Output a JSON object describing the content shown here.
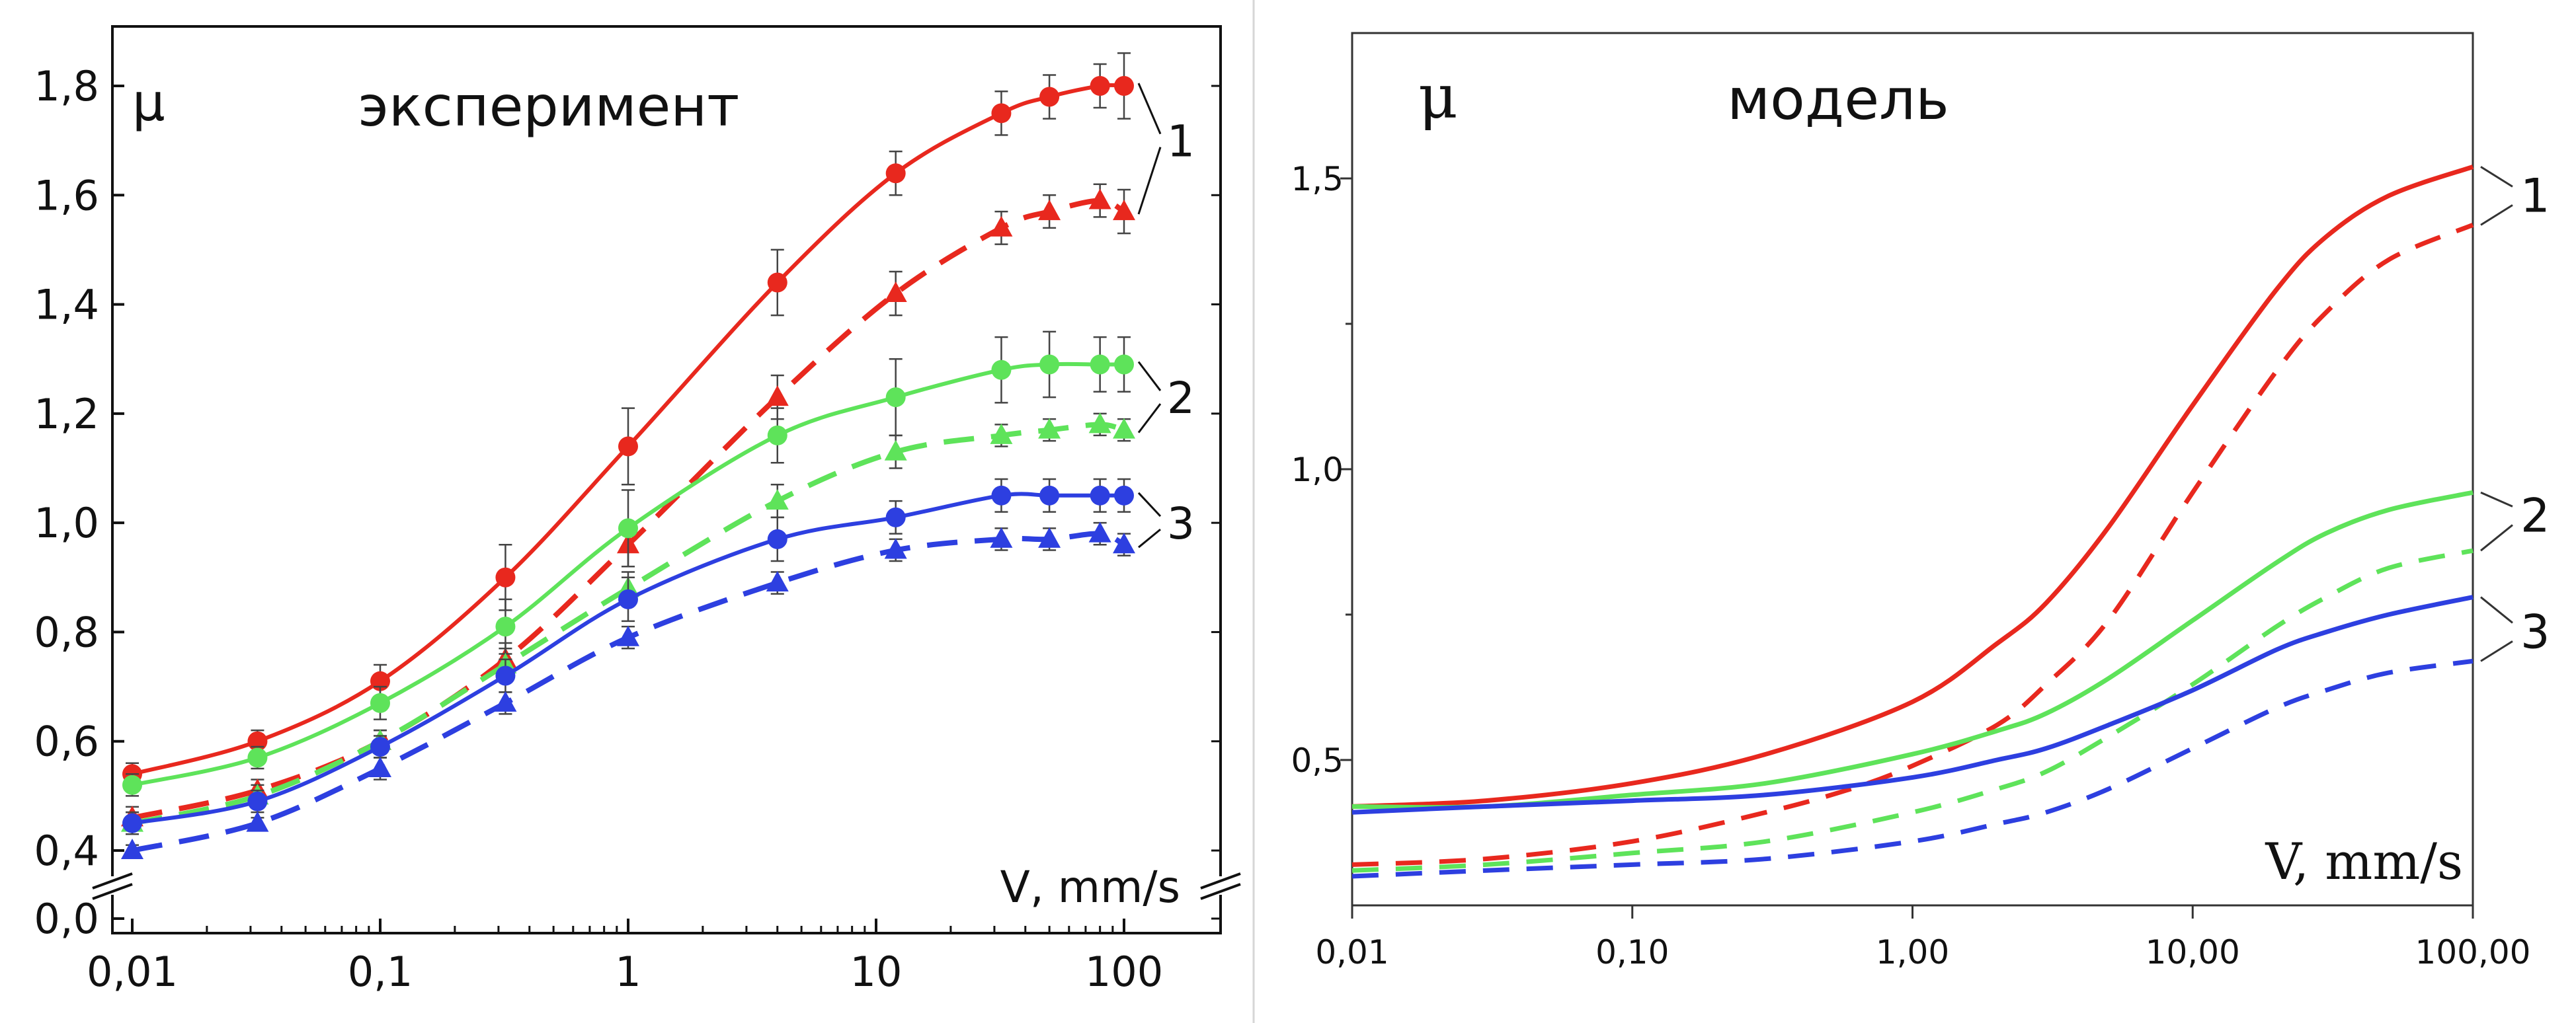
{
  "chart_data": [
    {
      "type": "line",
      "title": "эксперимент",
      "ylabel": "μ",
      "xlabel": "V, mm/s",
      "xscale": "log",
      "xlim": [
        0.006,
        300
      ],
      "ylim": [
        0.0,
        1.88
      ],
      "y_axis_break": "between 0,0 and 0,4",
      "x_ticks": [
        0.01,
        0.1,
        1,
        10,
        100
      ],
      "x_tick_labels": [
        "0,01",
        "0,1",
        "1",
        "10",
        "100"
      ],
      "y_ticks": [
        0.0,
        0.4,
        0.6,
        0.8,
        1.0,
        1.2,
        1.4,
        1.6,
        1.8
      ],
      "y_tick_labels": [
        "0,0",
        "0,4",
        "0,6",
        "0,8",
        "1,0",
        "1,2",
        "1,4",
        "1,6",
        "1,8"
      ],
      "error_bars": true,
      "curve_labels": [
        {
          "text": "1",
          "color": "#e8281e",
          "at_y": 1.7
        },
        {
          "text": "2",
          "color": "#5ee35a",
          "at_y": 1.23
        },
        {
          "text": "3",
          "color": "#2d3fe0",
          "at_y": 1.0
        }
      ],
      "series": [
        {
          "curve": "1",
          "style": "solid",
          "marker": "circle",
          "color": "#e8281e",
          "x": [
            0.01,
            0.032,
            0.1,
            0.32,
            1,
            4,
            12,
            32,
            50,
            80,
            100
          ],
          "y": [
            0.54,
            0.6,
            0.71,
            0.9,
            1.14,
            1.44,
            1.64,
            1.75,
            1.78,
            1.8,
            1.8
          ],
          "err": [
            0.02,
            0.02,
            0.03,
            0.06,
            0.07,
            0.06,
            0.04,
            0.04,
            0.04,
            0.04,
            0.06
          ]
        },
        {
          "curve": "1",
          "style": "dashed",
          "marker": "triangle",
          "color": "#e8281e",
          "x": [
            0.01,
            0.032,
            0.1,
            0.32,
            1,
            4,
            12,
            32,
            50,
            80,
            100
          ],
          "y": [
            0.46,
            0.51,
            0.6,
            0.75,
            0.96,
            1.23,
            1.42,
            1.54,
            1.57,
            1.59,
            1.57
          ],
          "err": [
            0.02,
            0.02,
            0.02,
            0.03,
            0.04,
            0.04,
            0.04,
            0.03,
            0.03,
            0.03,
            0.04
          ]
        },
        {
          "curve": "2",
          "style": "solid",
          "marker": "circle",
          "color": "#5ee35a",
          "x": [
            0.01,
            0.032,
            0.1,
            0.32,
            1,
            4,
            12,
            32,
            50,
            80,
            100
          ],
          "y": [
            0.52,
            0.57,
            0.67,
            0.81,
            0.99,
            1.16,
            1.23,
            1.28,
            1.29,
            1.29,
            1.29
          ],
          "err": [
            0.02,
            0.02,
            0.03,
            0.05,
            0.07,
            0.05,
            0.07,
            0.06,
            0.06,
            0.05,
            0.05
          ]
        },
        {
          "curve": "2",
          "style": "dashed",
          "marker": "triangle",
          "color": "#5ee35a",
          "x": [
            0.01,
            0.032,
            0.1,
            0.32,
            1,
            4,
            12,
            32,
            50,
            80,
            100
          ],
          "y": [
            0.45,
            0.5,
            0.6,
            0.74,
            0.88,
            1.04,
            1.13,
            1.16,
            1.17,
            1.18,
            1.17
          ],
          "err": [
            0.02,
            0.02,
            0.02,
            0.03,
            0.03,
            0.03,
            0.03,
            0.02,
            0.02,
            0.02,
            0.02
          ]
        },
        {
          "curve": "3",
          "style": "solid",
          "marker": "circle",
          "color": "#2d3fe0",
          "x": [
            0.01,
            0.032,
            0.1,
            0.32,
            1,
            4,
            12,
            32,
            50,
            80,
            100
          ],
          "y": [
            0.45,
            0.49,
            0.59,
            0.72,
            0.86,
            0.97,
            1.01,
            1.05,
            1.05,
            1.05,
            1.05
          ],
          "err": [
            0.02,
            0.02,
            0.02,
            0.03,
            0.04,
            0.04,
            0.03,
            0.03,
            0.03,
            0.03,
            0.03
          ]
        },
        {
          "curve": "3",
          "style": "dashed",
          "marker": "triangle",
          "color": "#2d3fe0",
          "x": [
            0.01,
            0.032,
            0.1,
            0.32,
            1,
            4,
            12,
            32,
            50,
            80,
            100
          ],
          "y": [
            0.4,
            0.45,
            0.55,
            0.67,
            0.79,
            0.89,
            0.95,
            0.97,
            0.97,
            0.98,
            0.96
          ],
          "err": [
            0.01,
            0.01,
            0.02,
            0.02,
            0.02,
            0.02,
            0.02,
            0.02,
            0.02,
            0.02,
            0.02
          ]
        }
      ]
    },
    {
      "type": "line",
      "title": "модель",
      "ylabel": "μ",
      "xlabel": "V, mm/s",
      "xscale": "log",
      "xlim": [
        0.01,
        100
      ],
      "ylim": [
        0.25,
        1.75
      ],
      "x_ticks": [
        0.01,
        0.1,
        1,
        10,
        100
      ],
      "x_tick_labels": [
        "0,01",
        "0,10",
        "1,00",
        "10,00",
        "100,00"
      ],
      "y_ticks": [
        0.5,
        1.0,
        1.5
      ],
      "y_tick_labels": [
        "0,5",
        "1,0",
        "1,5"
      ],
      "curve_labels": [
        {
          "text": "1",
          "color": "#e8281e",
          "at_y": 1.47
        },
        {
          "text": "2",
          "color": "#5ee35a",
          "at_y": 0.92
        },
        {
          "text": "3",
          "color": "#2d3fe0",
          "at_y": 0.72
        }
      ],
      "series": [
        {
          "curve": "1",
          "style": "solid",
          "color": "#e8281e",
          "x": [
            0.01,
            0.03,
            0.1,
            0.3,
            1,
            2,
            3,
            5,
            10,
            20,
            30,
            50,
            100
          ],
          "y": [
            0.42,
            0.43,
            0.46,
            0.51,
            0.6,
            0.7,
            0.77,
            0.9,
            1.11,
            1.31,
            1.4,
            1.47,
            1.52
          ]
        },
        {
          "curve": "1",
          "style": "dashed",
          "color": "#e8281e",
          "x": [
            0.01,
            0.03,
            0.1,
            0.3,
            0.6,
            1,
            2,
            3,
            5,
            10,
            20,
            30,
            50,
            100
          ],
          "y": [
            0.32,
            0.33,
            0.36,
            0.41,
            0.45,
            0.49,
            0.56,
            0.63,
            0.74,
            0.96,
            1.17,
            1.27,
            1.36,
            1.42
          ]
        },
        {
          "curve": "2",
          "style": "solid",
          "color": "#5ee35a",
          "x": [
            0.01,
            0.03,
            0.1,
            0.3,
            1,
            2,
            3,
            5,
            10,
            20,
            30,
            50,
            100
          ],
          "y": [
            0.42,
            0.42,
            0.44,
            0.46,
            0.51,
            0.55,
            0.58,
            0.64,
            0.74,
            0.84,
            0.89,
            0.93,
            0.96
          ]
        },
        {
          "curve": "2",
          "style": "dashed",
          "color": "#5ee35a",
          "x": [
            0.01,
            0.03,
            0.1,
            0.3,
            1,
            2,
            3,
            5,
            10,
            20,
            30,
            50,
            100
          ],
          "y": [
            0.31,
            0.32,
            0.34,
            0.36,
            0.41,
            0.45,
            0.48,
            0.54,
            0.63,
            0.73,
            0.78,
            0.83,
            0.86
          ]
        },
        {
          "curve": "3",
          "style": "solid",
          "color": "#2d3fe0",
          "x": [
            0.01,
            0.03,
            0.1,
            0.3,
            1,
            2,
            3,
            5,
            10,
            20,
            30,
            50,
            100
          ],
          "y": [
            0.41,
            0.42,
            0.43,
            0.44,
            0.47,
            0.5,
            0.52,
            0.56,
            0.62,
            0.69,
            0.72,
            0.75,
            0.78
          ]
        },
        {
          "curve": "3",
          "style": "dashed",
          "color": "#2d3fe0",
          "x": [
            0.01,
            0.03,
            0.1,
            0.3,
            1,
            2,
            3,
            5,
            10,
            20,
            30,
            50,
            100
          ],
          "y": [
            0.3,
            0.31,
            0.32,
            0.33,
            0.36,
            0.39,
            0.41,
            0.45,
            0.52,
            0.59,
            0.62,
            0.65,
            0.67
          ]
        }
      ]
    }
  ]
}
